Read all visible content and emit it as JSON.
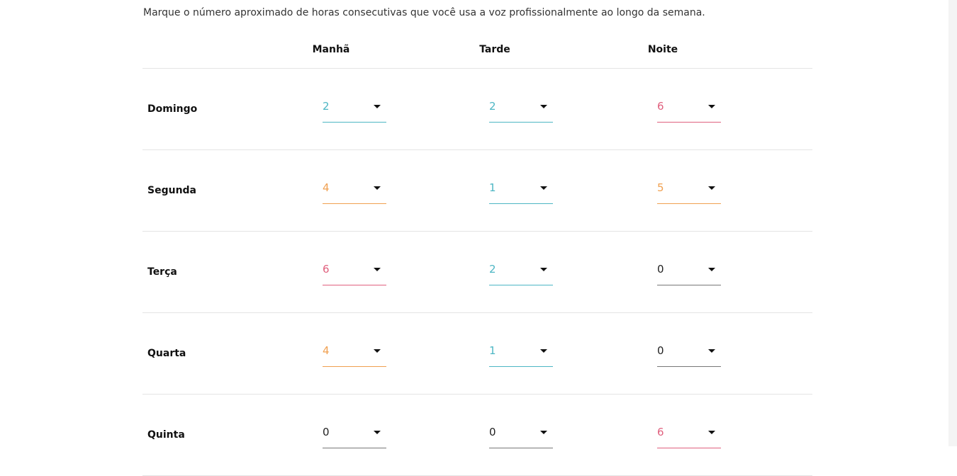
{
  "instruction": "Marque o número aproximado de horas consecutivas que você usa a voz profissionalmente ao longo da semana.",
  "columns": [
    "Manhã",
    "Tarde",
    "Noite"
  ],
  "value_colors": {
    "low": "#4db6c4",
    "mid": "#f0a050",
    "high": "#e0607e",
    "zero": "#222222"
  },
  "rows": [
    {
      "day": "Domingo",
      "manha": "2",
      "tarde": "2",
      "noite": "6"
    },
    {
      "day": "Segunda",
      "manha": "4",
      "tarde": "1",
      "noite": "5"
    },
    {
      "day": "Terça",
      "manha": "6",
      "tarde": "2",
      "noite": "0"
    },
    {
      "day": "Quarta",
      "manha": "4",
      "tarde": "1",
      "noite": "0"
    },
    {
      "day": "Quinta",
      "manha": "0",
      "tarde": "0",
      "noite": "6"
    }
  ],
  "icons": {
    "dropdown": "caret-down-icon"
  }
}
